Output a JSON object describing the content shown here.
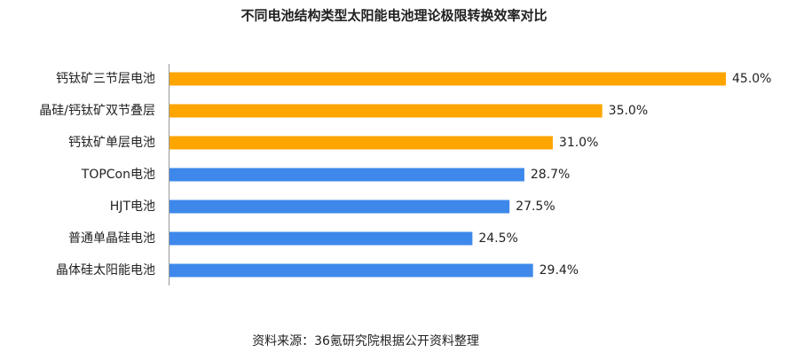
{
  "chart_data": {
    "type": "bar",
    "orientation": "horizontal",
    "title": "不同电池结构类型太阳能电池理论极限转换效率对比",
    "categories": [
      "钙钛矿三节层电池",
      "晶硅/钙钛矿双节叠层",
      "钙钛矿单层电池",
      "TOPCon电池",
      "HJT电池",
      "普通单晶硅电池",
      "晶体硅太阳能电池"
    ],
    "values": [
      45.0,
      35.0,
      31.0,
      28.7,
      27.5,
      24.5,
      29.4
    ],
    "value_labels": [
      "45.0%",
      "35.0%",
      "31.0%",
      "28.7%",
      "27.5%",
      "24.5%",
      "29.4%"
    ],
    "colors": [
      "#FFA500",
      "#FFA500",
      "#FFA500",
      "#3D88EA",
      "#3D88EA",
      "#3D88EA",
      "#3D88EA"
    ],
    "source": "资料来源：36氪研究院根据公开资料整理"
  }
}
